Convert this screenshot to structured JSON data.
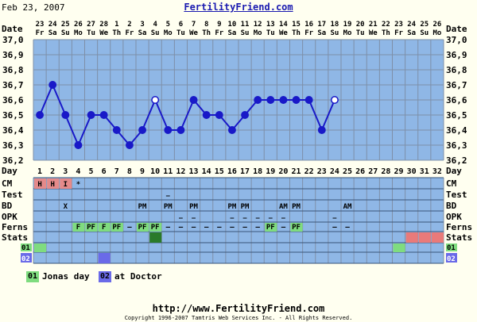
{
  "header": {
    "date": "Feb 23, 2007",
    "site": "FertilityFriend.com"
  },
  "row_labels": [
    "Date",
    "Day",
    "CM",
    "Test",
    "BD",
    "OPK",
    "Ferns",
    "Stats",
    "01",
    "02"
  ],
  "colors": {
    "background": "#fffff0",
    "chart_blue": "#8fb7e6",
    "grid_line": "#7e8fa8",
    "line": "#1919c8",
    "mucus_pink": "#e58a8a",
    "note_green": "#7fdc7f",
    "note_blue": "#6a6ae8",
    "stats_green": "#2a7a2a",
    "stats_pink": "#e97a7a"
  },
  "dates": {
    "days": [
      "23",
      "24",
      "25",
      "26",
      "27",
      "28",
      "1",
      "2",
      "3",
      "4",
      "5",
      "6",
      "7",
      "8",
      "9",
      "10",
      "11",
      "12",
      "13",
      "14",
      "15",
      "16",
      "17",
      "18",
      "19",
      "20",
      "21",
      "22",
      "23",
      "24",
      "25",
      "26"
    ],
    "weekdays": [
      "Fr",
      "Sa",
      "Su",
      "Mo",
      "Tu",
      "We",
      "Th",
      "Fr",
      "Sa",
      "Su",
      "Mo",
      "Tu",
      "We",
      "Th",
      "Fr",
      "Sa",
      "Su",
      "Mo",
      "Tu",
      "We",
      "Th",
      "Fr",
      "Sa",
      "Su",
      "Mo",
      "Tu",
      "We",
      "Th",
      "Fr",
      "Sa",
      "Su",
      "Mo"
    ]
  },
  "cycle_days": [
    "1",
    "2",
    "3",
    "4",
    "5",
    "6",
    "7",
    "8",
    "9",
    "10",
    "11",
    "12",
    "13",
    "14",
    "15",
    "16",
    "17",
    "18",
    "19",
    "20",
    "21",
    "22",
    "23",
    "24",
    "25",
    "26",
    "27",
    "28",
    "29",
    "30",
    "31",
    "32"
  ],
  "chart_data": {
    "type": "line",
    "ylim": [
      36.2,
      37.0
    ],
    "y_ticks": [
      "37,0",
      "36,9",
      "36,8",
      "36,7",
      "36,6",
      "36,5",
      "36,4",
      "36,3",
      "36,2"
    ],
    "x": [
      1,
      2,
      3,
      4,
      5,
      6,
      7,
      8,
      9,
      10,
      11,
      12,
      13,
      14,
      15,
      16,
      17,
      18,
      19,
      20,
      21,
      22,
      23,
      24
    ],
    "values": [
      36.5,
      36.7,
      36.5,
      36.3,
      36.5,
      36.5,
      36.4,
      36.3,
      36.4,
      36.6,
      36.4,
      36.4,
      36.6,
      36.5,
      36.5,
      36.4,
      36.5,
      36.6,
      36.6,
      36.6,
      36.6,
      36.6,
      36.4,
      36.6
    ],
    "hollow_points": [
      10,
      24
    ]
  },
  "rows": {
    "cm": [
      {
        "day": 1,
        "text": "H",
        "fill": "pink"
      },
      {
        "day": 2,
        "text": "H",
        "fill": "pink"
      },
      {
        "day": 3,
        "text": "I",
        "fill": "pink"
      },
      {
        "day": 4,
        "text": "*",
        "fill": ""
      }
    ],
    "test": [
      {
        "day": 11,
        "text": "—"
      }
    ],
    "bd": [
      {
        "day": 3,
        "text": "X"
      },
      {
        "day": 9,
        "text": "PM"
      },
      {
        "day": 11,
        "text": "PM"
      },
      {
        "day": 13,
        "text": "PM"
      },
      {
        "day": 16,
        "text": "PM"
      },
      {
        "day": 17,
        "text": "PM"
      },
      {
        "day": 20,
        "text": "AM"
      },
      {
        "day": 21,
        "text": "PM"
      },
      {
        "day": 25,
        "text": "AM"
      }
    ],
    "opk": [
      {
        "day": 12,
        "text": "—"
      },
      {
        "day": 13,
        "text": "—"
      },
      {
        "day": 16,
        "text": "—"
      },
      {
        "day": 17,
        "text": "—"
      },
      {
        "day": 18,
        "text": "—"
      },
      {
        "day": 19,
        "text": "—"
      },
      {
        "day": 20,
        "text": "—"
      },
      {
        "day": 24,
        "text": "—"
      }
    ],
    "ferns": [
      {
        "day": 4,
        "text": "F",
        "fill": "green"
      },
      {
        "day": 5,
        "text": "PF",
        "fill": "green"
      },
      {
        "day": 6,
        "text": "F",
        "fill": "green"
      },
      {
        "day": 7,
        "text": "PF",
        "fill": "green"
      },
      {
        "day": 8,
        "text": "—",
        "fill": ""
      },
      {
        "day": 9,
        "text": "PF",
        "fill": "green"
      },
      {
        "day": 10,
        "text": "PF",
        "fill": "green"
      },
      {
        "day": 11,
        "text": "—",
        "fill": ""
      },
      {
        "day": 12,
        "text": "—",
        "fill": ""
      },
      {
        "day": 13,
        "text": "—",
        "fill": ""
      },
      {
        "day": 14,
        "text": "—",
        "fill": ""
      },
      {
        "day": 15,
        "text": "—",
        "fill": ""
      },
      {
        "day": 16,
        "text": "—",
        "fill": ""
      },
      {
        "day": 17,
        "text": "—",
        "fill": ""
      },
      {
        "day": 18,
        "text": "—",
        "fill": ""
      },
      {
        "day": 19,
        "text": "PF",
        "fill": "green"
      },
      {
        "day": 20,
        "text": "—",
        "fill": ""
      },
      {
        "day": 21,
        "text": "PF",
        "fill": "green"
      },
      {
        "day": 24,
        "text": "—",
        "fill": ""
      },
      {
        "day": 25,
        "text": "—",
        "fill": ""
      }
    ],
    "stats": [
      {
        "day": 10,
        "fill": "stats_green"
      },
      {
        "day": 30,
        "fill": "stats_pink"
      },
      {
        "day": 31,
        "fill": "stats_pink"
      },
      {
        "day": 32,
        "fill": "stats_pink"
      }
    ],
    "note01": [
      {
        "day": 1
      },
      {
        "day": 29
      }
    ],
    "note02": [
      {
        "day": 6
      }
    ]
  },
  "legend": [
    {
      "code": "01",
      "text": "Jonas day",
      "color": "note_green"
    },
    {
      "code": "02",
      "text": "at Doctor",
      "color": "note_blue"
    }
  ],
  "footer": {
    "url": "http://www.FertilityFriend.com",
    "copyright": "Copyright 1996-2007 Tamtris Web Services Inc. - All Rights Reserved."
  }
}
